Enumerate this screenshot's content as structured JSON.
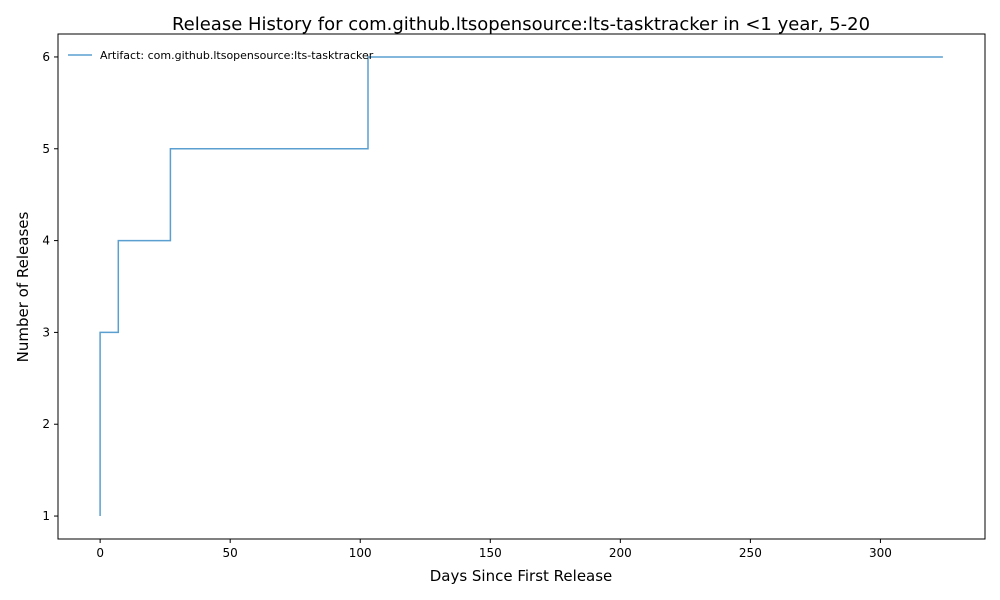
{
  "chart_data": {
    "type": "line",
    "step": "post",
    "title": "Release History for com.github.ltsopensource:lts-tasktracker in <1 year, 5-20",
    "xlabel": "Days Since First Release",
    "ylabel": "Number of Releases",
    "xlim": [
      -16.2,
      340.2
    ],
    "ylim": [
      0.75,
      6.25
    ],
    "xticks": [
      0,
      50,
      100,
      150,
      200,
      250,
      300
    ],
    "yticks": [
      1,
      2,
      3,
      4,
      5,
      6
    ],
    "grid": false,
    "legend_position": "upper-left",
    "series": [
      {
        "name": "Artifact: com.github.ltsopensource:lts-tasktracker",
        "color": "#5a9fd0",
        "x": [
          0,
          0,
          7,
          27,
          103,
          324
        ],
        "y": [
          1,
          3,
          4,
          5,
          6,
          6
        ]
      }
    ]
  }
}
